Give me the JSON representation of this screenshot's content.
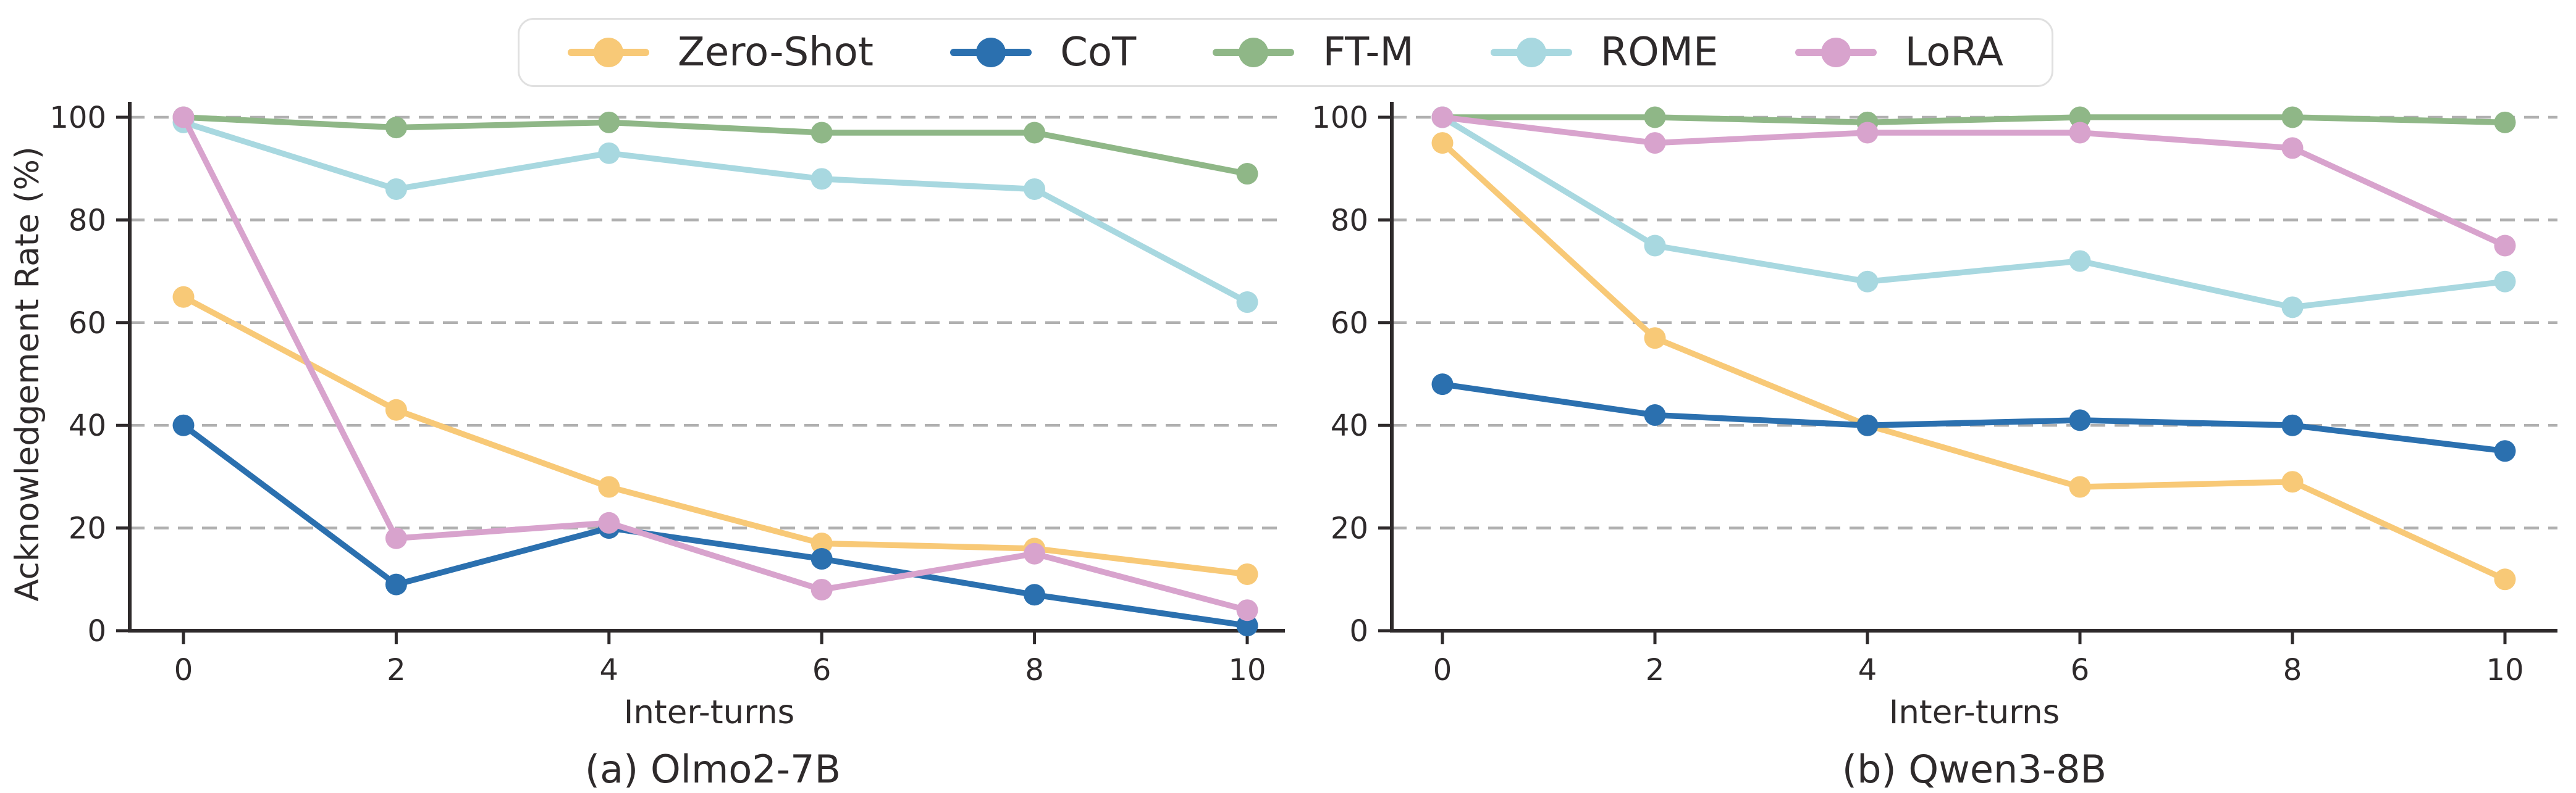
{
  "figure": {
    "background": "#ffffff",
    "text_color": "#2e2a2b",
    "spine_color": "#2e2a2b",
    "grid_color": "#b0b0b0",
    "legend_border_color": "#e0e0e0"
  },
  "legend": {
    "items": [
      {
        "label": "Zero-Shot",
        "color": "#F8C977"
      },
      {
        "label": "CoT",
        "color": "#2B70AF"
      },
      {
        "label": "FT-M",
        "color": "#8FB787"
      },
      {
        "label": "ROME",
        "color": "#A8D8E0"
      },
      {
        "label": "LoRA",
        "color": "#D8A3CD"
      }
    ]
  },
  "chart_data": [
    {
      "type": "line",
      "caption": "(a) Olmo2-7B",
      "xlabel": "Inter-turns",
      "ylabel": "Acknowledgement Rate (%)",
      "x": [
        0,
        2,
        4,
        6,
        8,
        10
      ],
      "xticks": [
        "0",
        "2",
        "4",
        "6",
        "8",
        "10"
      ],
      "yticks": [
        "0",
        "20",
        "40",
        "60",
        "80",
        "100"
      ],
      "ylim": [
        0,
        100
      ],
      "grid": "horizontal-dashed",
      "legend_position": "shared-top",
      "series": [
        {
          "name": "Zero-Shot",
          "color": "#F8C977",
          "values": [
            65,
            43,
            28,
            17,
            16,
            11
          ]
        },
        {
          "name": "CoT",
          "color": "#2B70AF",
          "values": [
            40,
            9,
            20,
            14,
            7,
            1
          ]
        },
        {
          "name": "FT-M",
          "color": "#8FB787",
          "values": [
            100,
            98,
            99,
            97,
            97,
            89
          ]
        },
        {
          "name": "ROME",
          "color": "#A8D8E0",
          "values": [
            99,
            86,
            93,
            88,
            86,
            64
          ]
        },
        {
          "name": "LoRA",
          "color": "#D8A3CD",
          "values": [
            100,
            18,
            21,
            8,
            15,
            4
          ]
        }
      ]
    },
    {
      "type": "line",
      "caption": "(b) Qwen3-8B",
      "xlabel": "Inter-turns",
      "ylabel": "",
      "x": [
        0,
        2,
        4,
        6,
        8,
        10
      ],
      "xticks": [
        "0",
        "2",
        "4",
        "6",
        "8",
        "10"
      ],
      "yticks": [
        "0",
        "20",
        "40",
        "60",
        "80",
        "100"
      ],
      "ylim": [
        0,
        100
      ],
      "grid": "horizontal-dashed",
      "legend_position": "shared-top",
      "series": [
        {
          "name": "Zero-Shot",
          "color": "#F8C977",
          "values": [
            95,
            57,
            40,
            28,
            29,
            10
          ]
        },
        {
          "name": "CoT",
          "color": "#2B70AF",
          "values": [
            48,
            42,
            40,
            41,
            40,
            35
          ]
        },
        {
          "name": "FT-M",
          "color": "#8FB787",
          "values": [
            100,
            100,
            99,
            100,
            100,
            99
          ]
        },
        {
          "name": "ROME",
          "color": "#A8D8E0",
          "values": [
            100,
            75,
            68,
            72,
            63,
            68
          ]
        },
        {
          "name": "LoRA",
          "color": "#D8A3CD",
          "values": [
            100,
            95,
            97,
            97,
            94,
            75
          ]
        }
      ]
    }
  ]
}
